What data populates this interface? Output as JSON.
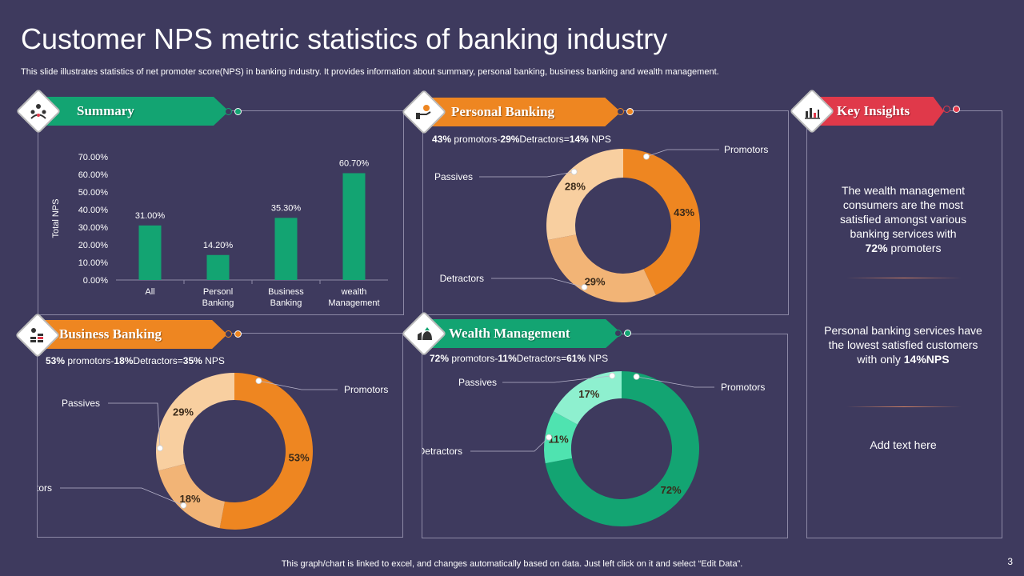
{
  "title": "Customer NPS metric statistics of banking industry",
  "subtitle": "This slide illustrates statistics of net promoter score(NPS) in banking industry. It provides information about summary, personal banking, business banking and wealth management.",
  "footer": "This graph/chart is linked to excel,  and changes automatically based on data. Just left click on it and select “Edit Data”.",
  "page_number": "3",
  "colors": {
    "green": "#13a472",
    "orange": "#ee8621",
    "red": "#e0394a",
    "background": "#3e3a5e"
  },
  "panels": {
    "summary": {
      "label": "Summary",
      "icon": "meeting-icon"
    },
    "personal": {
      "label": "Personal Banking",
      "icon": "money-hand-icon",
      "stat": {
        "p": "43%",
        "t1": " promotors-",
        "d": "29%",
        "t2": "Detractors=",
        "n": "14%",
        "t3": " NPS"
      }
    },
    "business": {
      "label": "Business Banking",
      "icon": "coins-icon",
      "stat": {
        "p": "53%",
        "t1": "  promotors-",
        "d": "18%",
        "t2": "Detractors=",
        "n": "35%",
        "t3": "  NPS"
      }
    },
    "wealth": {
      "label": "Wealth Management",
      "icon": "money-bag-icon",
      "stat": {
        "p": "72%",
        "t1": "  promotors-",
        "d": "11%",
        "t2": "Detractors=",
        "n": "61%",
        "t3": "  NPS"
      }
    },
    "insights": {
      "label": "Key Insights",
      "icon": "bar-chart-icon"
    }
  },
  "insights": {
    "first_text": "The wealth management consumers are the most satisfied amongst various banking services with",
    "first_bold": "72%",
    "first_tail": " promoters",
    "second_text": "Personal banking services have the lowest satisfied customers with only ",
    "second_bold": "14%NPS",
    "third_text": "Add text here"
  },
  "chart_data": [
    {
      "id": "summary",
      "type": "bar",
      "categories": [
        "All",
        "Personl Banking",
        "Business Banking",
        "wealth Management"
      ],
      "values": [
        31.0,
        14.2,
        35.3,
        60.7
      ],
      "value_labels": [
        "31.00%",
        "14.20%",
        "35.30%",
        "60.70%"
      ],
      "ylabel": "Total NPS",
      "ylim": [
        0,
        70
      ],
      "yticks": [
        "0.00%",
        "10.00%",
        "20.00%",
        "30.00%",
        "40.00%",
        "50.00%",
        "60.00%",
        "70.00%"
      ],
      "color": "#13a472"
    },
    {
      "id": "personal",
      "type": "pie",
      "title": "Personal Banking",
      "slices": [
        {
          "name": "Promotors",
          "value": 43,
          "label": "43%",
          "color": "#ee8621"
        },
        {
          "name": "Detractors",
          "value": 29,
          "label": "29%",
          "color": "#f2b476"
        },
        {
          "name": "Passives",
          "value": 28,
          "label": "28%",
          "color": "#f8cfa0"
        }
      ]
    },
    {
      "id": "business",
      "type": "pie",
      "title": "Business Banking",
      "slices": [
        {
          "name": "Promotors",
          "value": 53,
          "label": "53%",
          "color": "#ee8621"
        },
        {
          "name": "Detractors",
          "value": 18,
          "label": "18%",
          "color": "#f2b476"
        },
        {
          "name": "Passives",
          "value": 29,
          "label": "29%",
          "color": "#f8cfa0"
        }
      ]
    },
    {
      "id": "wealth",
      "type": "pie",
      "title": "Wealth Management",
      "slices": [
        {
          "name": "Promotors",
          "value": 72,
          "label": "72%",
          "color": "#13a472"
        },
        {
          "name": "Detractors",
          "value": 11,
          "label": "11%",
          "color": "#4fe3b0"
        },
        {
          "name": "Passives",
          "value": 17,
          "label": "17%",
          "color": "#8ef0cf"
        }
      ]
    }
  ]
}
